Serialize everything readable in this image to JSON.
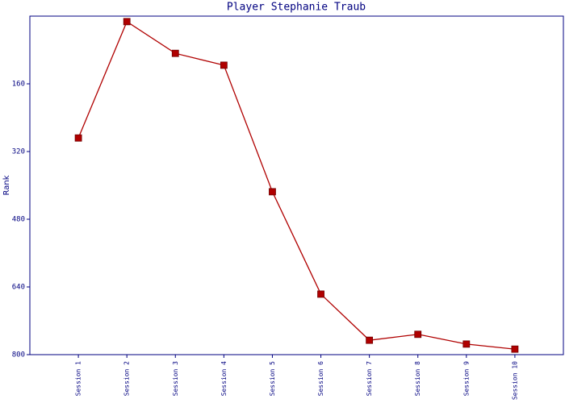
{
  "chart_data": {
    "type": "line",
    "title": "Player Stephanie Traub",
    "y_label": "Rank",
    "categories": [
      "Session 1",
      "Session 2",
      "Session 3",
      "Session 4",
      "Session 5",
      "Session 6",
      "Session 7",
      "Session 8",
      "Session 9",
      "Session 10"
    ],
    "series": [
      {
        "name": "Rank",
        "color": "#b00000",
        "values": [
          288,
          13,
          88,
          116,
          415,
          657,
          766,
          752,
          775,
          787
        ]
      }
    ],
    "ylim": [
      0,
      800
    ],
    "y_inverted": true,
    "yticks": [
      160,
      320,
      480,
      640,
      800
    ],
    "grid": false
  }
}
